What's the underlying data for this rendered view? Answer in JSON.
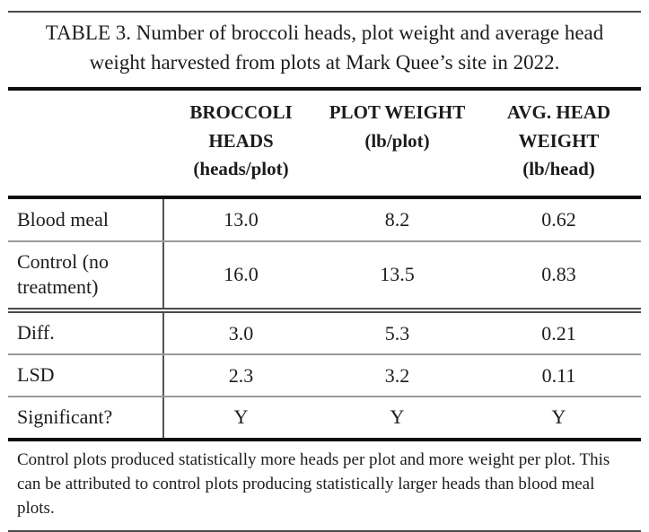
{
  "chart_data": {
    "type": "table",
    "title": "TABLE 3. Number of broccoli heads, plot weight and average head weight harvested from plots at Mark Quee’s site in 2022.",
    "columns": [
      {
        "label": "BROCCOLI HEADS",
        "unit": "(heads/plot)"
      },
      {
        "label": "PLOT WEIGHT",
        "unit": "(lb/plot)"
      },
      {
        "label": "AVG. HEAD WEIGHT",
        "unit": "(lb/head)"
      }
    ],
    "rows": [
      {
        "label": "Blood meal",
        "values": [
          "13.0",
          "8.2",
          "0.62"
        ]
      },
      {
        "label": "Control (no treatment)",
        "values": [
          "16.0",
          "13.5",
          "0.83"
        ]
      },
      {
        "label": "Diff.",
        "values": [
          "3.0",
          "5.3",
          "0.21"
        ]
      },
      {
        "label": "LSD",
        "values": [
          "2.3",
          "3.2",
          "0.11"
        ]
      },
      {
        "label": "Significant?",
        "values": [
          "Y",
          "Y",
          "Y"
        ]
      }
    ],
    "footnote": "Control plots produced statistically more heads per plot and more weight per plot. This can be attributed to control plots producing statistically larger heads than blood meal plots.",
    "layout": {
      "grid": "horizontal rules only, vertical divider after label column",
      "accent_color": "#0f0f0f",
      "thin_rule_color": "#9a9a9a"
    }
  }
}
